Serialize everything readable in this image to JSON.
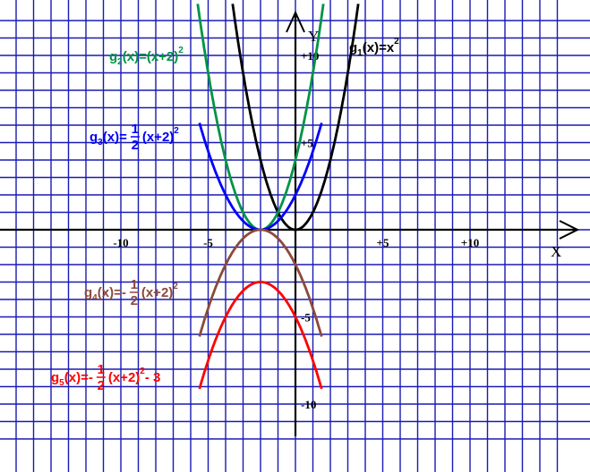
{
  "chart_data": {
    "type": "line",
    "title": "",
    "xlabel": "X",
    "ylabel": "Y",
    "xlim": [
      -16.3,
      15.7
    ],
    "ylim": [
      -12.1,
      12.7
    ],
    "grid": true,
    "tick_labels": {
      "x": [
        {
          "value": -10,
          "text": "-10"
        },
        {
          "value": -5,
          "text": "-5"
        },
        {
          "value": 5,
          "text": "+5"
        },
        {
          "value": 10,
          "text": "+10"
        }
      ],
      "y": [
        {
          "value": 10,
          "text": "+10"
        },
        {
          "value": 5,
          "text": "+5"
        },
        {
          "value": -5,
          "text": "-5"
        },
        {
          "value": -10,
          "text": "-10"
        }
      ]
    },
    "series": [
      {
        "name": "g1(x)=x2",
        "label_parts": {
          "fn": "g",
          "sub": "1",
          "body": "(x)=x",
          "sup": "2"
        },
        "equation": "y = x^2",
        "color": "#000000",
        "x": [
          -3.6,
          -3,
          -2.5,
          -2,
          -1.5,
          -1,
          -0.5,
          0,
          0.5,
          1,
          1.5,
          2,
          2.5,
          3,
          3.6
        ],
        "y": [
          12.96,
          9,
          6.25,
          4,
          2.25,
          1,
          0.25,
          0,
          0.25,
          1,
          2.25,
          4,
          6.25,
          9,
          12.96
        ]
      },
      {
        "name": "g2(x)=(x+2)2",
        "label_parts": {
          "fn": "g",
          "sub": "2",
          "body": "(x)=(x+2)",
          "sup": "2"
        },
        "equation": "y = (x+2)^2",
        "color": "#009345",
        "x": [
          -5.6,
          -5,
          -4.5,
          -4,
          -3.5,
          -3,
          -2.5,
          -2,
          -1.5,
          -1,
          -0.5,
          0,
          0.5,
          1,
          1.6
        ],
        "y": [
          12.96,
          9,
          6.25,
          4,
          2.25,
          1,
          0.25,
          0,
          0.25,
          1,
          2.25,
          4,
          6.25,
          9,
          12.96
        ]
      },
      {
        "name": "g3(x)=1/2(x+2)2",
        "label_parts": {
          "fn": "g",
          "sub": "3",
          "body": "(x)=",
          "num": "1",
          "den": "2",
          "tail": "(x+2)",
          "sup": "2"
        },
        "equation": "y = 1/2 (x+2)^2",
        "color": "#0000ff",
        "x": [
          -5.5,
          -5,
          -4.5,
          -4,
          -3.5,
          -3,
          -2.5,
          -2,
          -1.5,
          -1,
          -0.5,
          0,
          0.5,
          1,
          1.5
        ],
        "y": [
          6.13,
          4.5,
          3.13,
          2,
          1.13,
          0.5,
          0.13,
          0,
          0.13,
          0.5,
          1.13,
          2,
          3.13,
          4.5,
          6.13
        ]
      },
      {
        "name": "g4(x)=-1/2(x+2)2",
        "label_parts": {
          "fn": "g",
          "sub": "4",
          "body": "(x)=-",
          "num": "1",
          "den": "2",
          "tail": " (x+2)",
          "sup": "2"
        },
        "equation": "y = -1/2 (x+2)^2",
        "color": "#8b4a3a",
        "x": [
          -5.5,
          -5,
          -4.5,
          -4,
          -3.5,
          -3,
          -2.5,
          -2,
          -1.5,
          -1,
          -0.5,
          0,
          0.5,
          1,
          1.5
        ],
        "y": [
          -6.13,
          -4.5,
          -3.13,
          -2,
          -1.13,
          -0.5,
          -0.13,
          0,
          -0.13,
          -0.5,
          -1.13,
          -2,
          -3.13,
          -4.5,
          -6.13
        ]
      },
      {
        "name": "g5(x)=-1/2(x+2)2-3",
        "label_parts": {
          "fn": "g",
          "sub": "5",
          "body": "(x)=-",
          "num": "1",
          "den": "2",
          "tail": " (x+2)",
          "sup": "2",
          "after": "- 3"
        },
        "equation": "y = -1/2 (x+2)^2 - 3",
        "color": "#ff0000",
        "x": [
          -5.5,
          -5,
          -4.5,
          -4,
          -3.5,
          -3,
          -2.5,
          -2,
          -1.5,
          -1,
          -0.5,
          0,
          0.5,
          1,
          1.5
        ],
        "y": [
          -9.13,
          -7.5,
          -6.13,
          -5,
          -4.13,
          -3.5,
          -3.13,
          -3,
          -3.13,
          -3.5,
          -4.13,
          -5,
          -6.13,
          -7.5,
          -9.13
        ]
      }
    ]
  }
}
